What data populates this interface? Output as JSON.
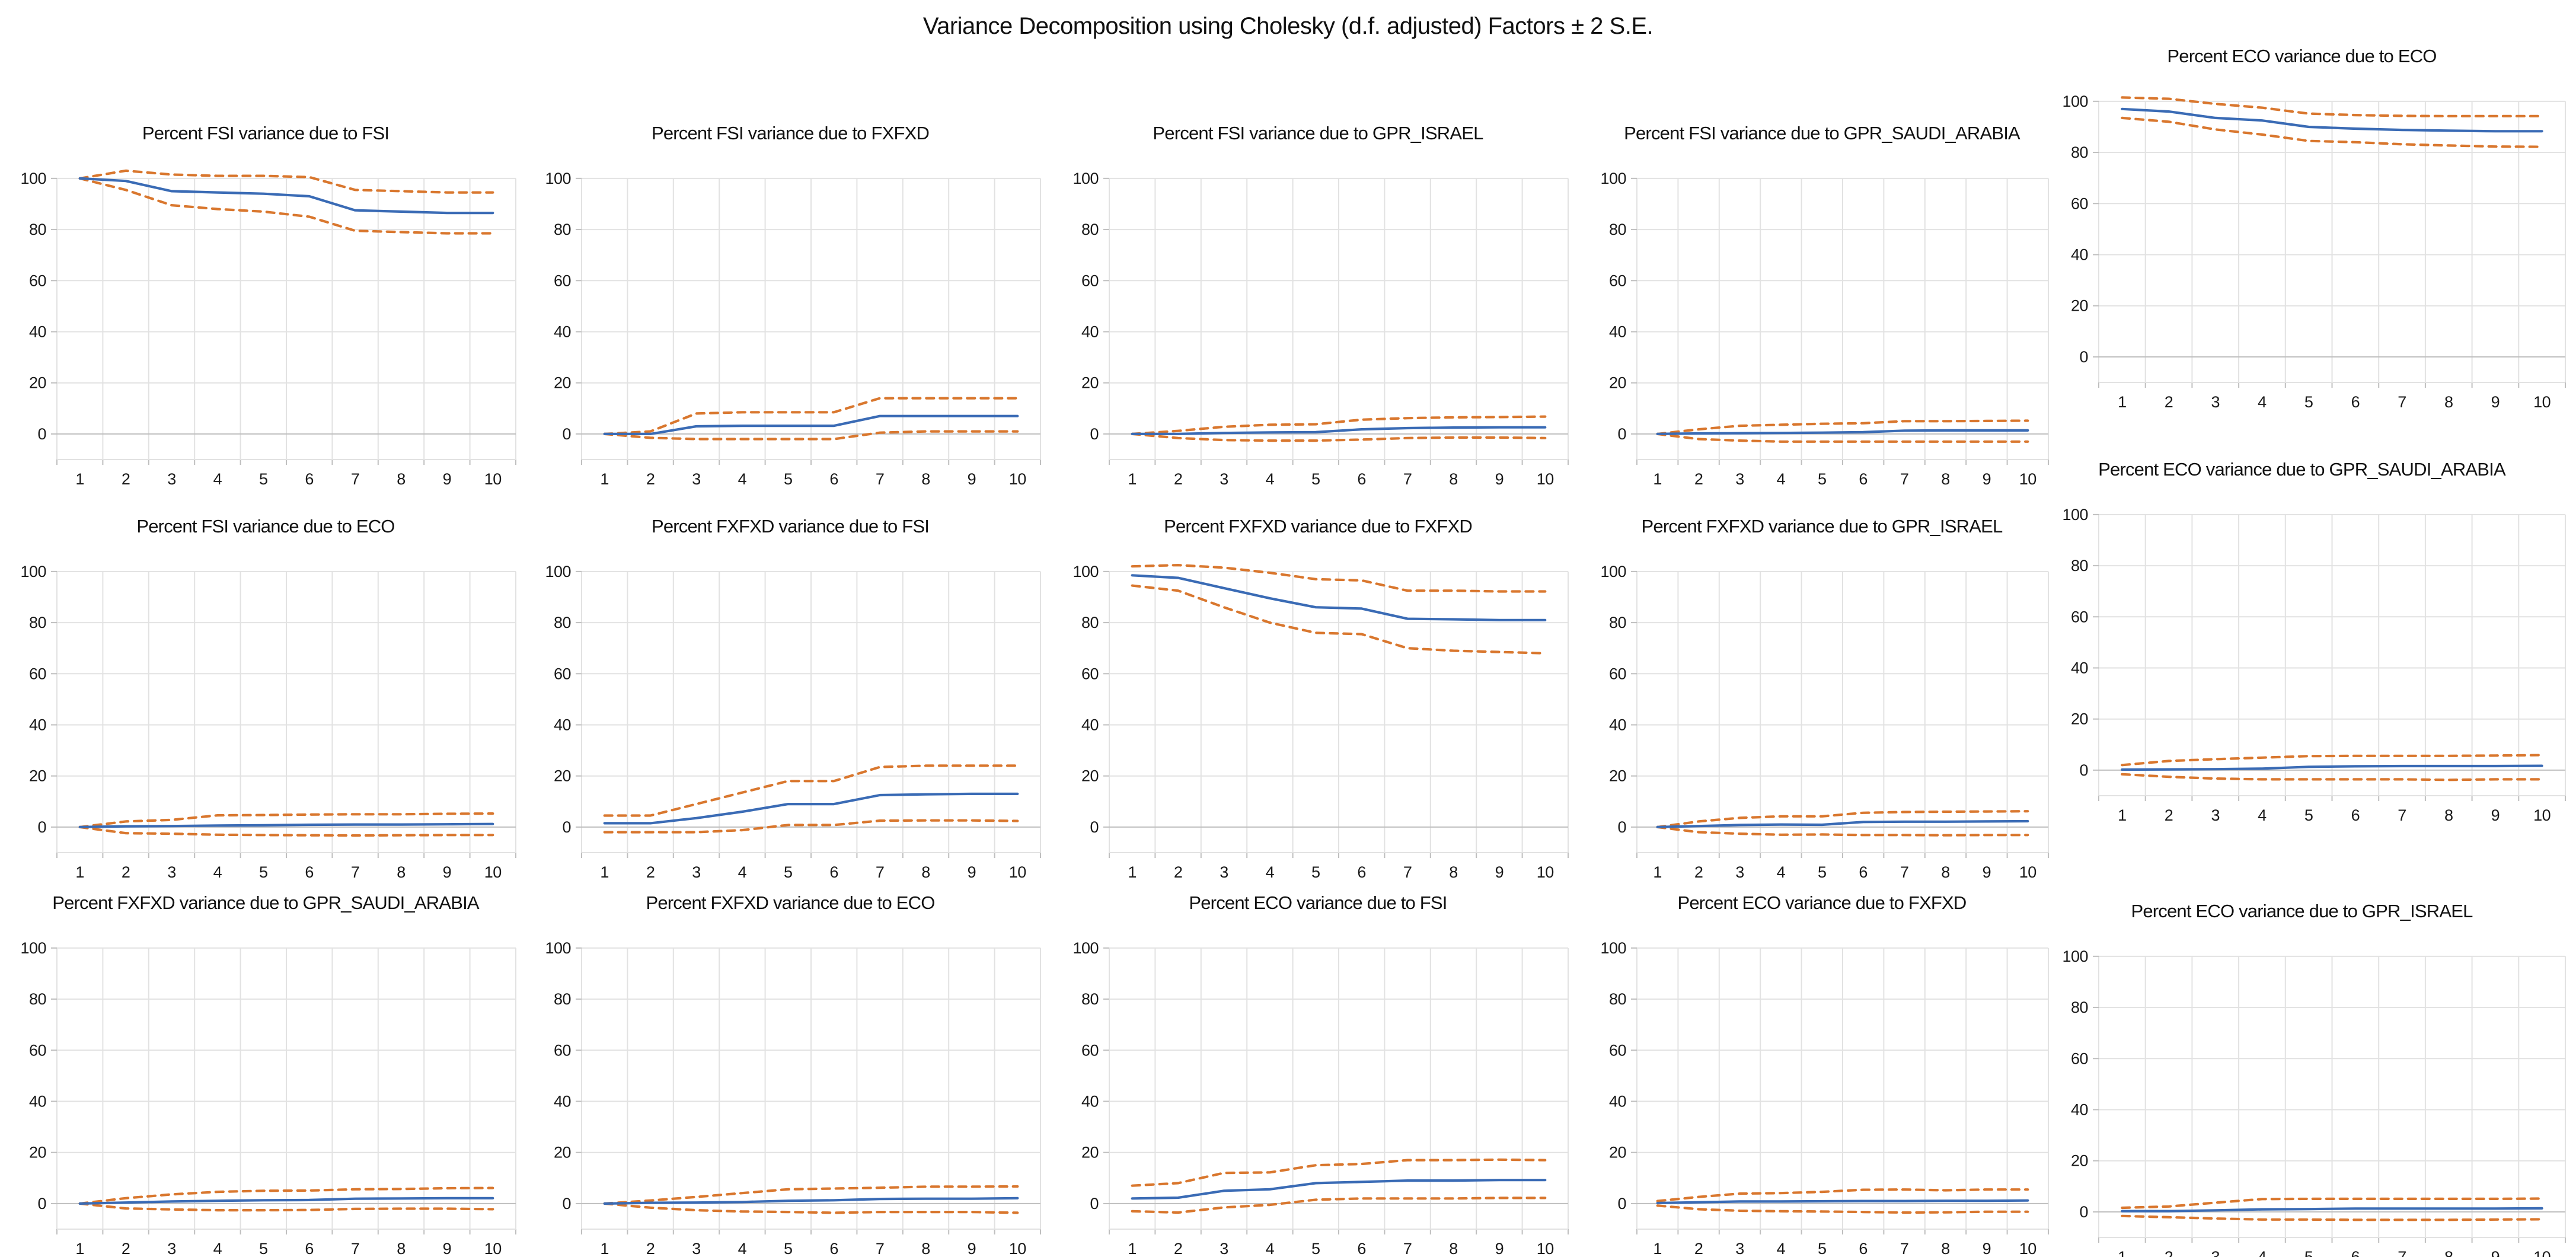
{
  "header": {
    "title": "Variance Decomposition using Cholesky (d.f. adjusted) Factors ± 2 S.E."
  },
  "colors": {
    "mean_line": "#3a6bb5",
    "se_band_line": "#d9772e",
    "grid": "#e2e2e2",
    "axis": "#bfbfbf",
    "text": "#1a1a1a",
    "background": "#ffffff"
  },
  "axes": {
    "x": [
      1,
      2,
      3,
      4,
      5,
      6,
      7,
      8,
      9,
      10
    ],
    "y_ticks": [
      0,
      20,
      40,
      60,
      80,
      100
    ],
    "ylim": [
      -10,
      106
    ],
    "grid": true,
    "legend": "none"
  },
  "chart_data": [
    {
      "type": "line",
      "title": "Percent FSI variance due to FSI",
      "series": [
        {
          "name": "mean",
          "values": [
            100,
            99,
            95,
            94.5,
            94,
            93,
            87.5,
            87,
            86.5,
            86.5
          ]
        },
        {
          "name": "upper_2se",
          "values": [
            100,
            103,
            101.5,
            101,
            101,
            100.5,
            95.5,
            95,
            94.5,
            94.5
          ]
        },
        {
          "name": "lower_2se",
          "values": [
            100,
            95.5,
            89.5,
            88,
            87,
            85,
            79.5,
            79,
            78.5,
            78.5
          ]
        }
      ]
    },
    {
      "type": "line",
      "title": "Percent FSI variance due to FXFXD",
      "series": [
        {
          "name": "mean",
          "values": [
            0,
            0,
            3,
            3.2,
            3.2,
            3.2,
            7,
            7,
            7,
            7
          ]
        },
        {
          "name": "upper_2se",
          "values": [
            0,
            1,
            8,
            8.5,
            8.5,
            8.5,
            14,
            14,
            14,
            14
          ]
        },
        {
          "name": "lower_2se",
          "values": [
            0,
            -1.5,
            -2,
            -2,
            -2,
            -2,
            0.5,
            1,
            1,
            1
          ]
        }
      ]
    },
    {
      "type": "line",
      "title": "Percent FSI variance due to GPR_ISRAEL",
      "series": [
        {
          "name": "mean",
          "values": [
            0,
            0,
            0.4,
            0.6,
            0.7,
            1.8,
            2.3,
            2.5,
            2.6,
            2.6
          ]
        },
        {
          "name": "upper_2se",
          "values": [
            0,
            1.2,
            2.8,
            3.6,
            3.8,
            5.6,
            6.2,
            6.5,
            6.6,
            6.8
          ]
        },
        {
          "name": "lower_2se",
          "values": [
            0,
            -1.6,
            -2.4,
            -2.6,
            -2.6,
            -2.2,
            -1.6,
            -1.4,
            -1.4,
            -1.6
          ]
        }
      ]
    },
    {
      "type": "line",
      "title": "Percent FSI variance due to GPR_SAUDI_ARABIA",
      "series": [
        {
          "name": "mean",
          "values": [
            0,
            0.2,
            0.3,
            0.4,
            0.5,
            0.7,
            1.3,
            1.4,
            1.4,
            1.4
          ]
        },
        {
          "name": "upper_2se",
          "values": [
            0,
            1.8,
            3.2,
            3.6,
            4,
            4.2,
            5,
            5,
            5.1,
            5.2
          ]
        },
        {
          "name": "lower_2se",
          "values": [
            0,
            -2,
            -2.6,
            -3,
            -3,
            -3,
            -3,
            -3,
            -3,
            -3
          ]
        }
      ]
    },
    {
      "type": "line",
      "title": "Percent ECO variance due to ECO",
      "series": [
        {
          "name": "mean",
          "values": [
            97,
            96,
            93.5,
            92.5,
            90,
            89.3,
            88.8,
            88.5,
            88.3,
            88.3
          ]
        },
        {
          "name": "upper_2se",
          "values": [
            101.5,
            101,
            99,
            97.5,
            95.2,
            94.6,
            94.3,
            94.2,
            94.2,
            94.2
          ]
        },
        {
          "name": "lower_2se",
          "values": [
            93.5,
            92,
            89,
            87,
            84.5,
            84,
            83.2,
            82.7,
            82.3,
            82.2
          ]
        }
      ]
    },
    {
      "type": "line",
      "title": "Percent FSI variance due to ECO",
      "series": [
        {
          "name": "mean",
          "values": [
            0,
            0.3,
            0.4,
            0.6,
            0.7,
            0.9,
            1,
            1,
            1.1,
            1.2
          ]
        },
        {
          "name": "upper_2se",
          "values": [
            0,
            2.2,
            2.8,
            4.6,
            4.7,
            4.9,
            5,
            5,
            5.2,
            5.3
          ]
        },
        {
          "name": "lower_2se",
          "values": [
            0,
            -2.4,
            -2.6,
            -3,
            -3.1,
            -3.2,
            -3.3,
            -3.2,
            -3.1,
            -3.1
          ]
        }
      ]
    },
    {
      "type": "line",
      "title": "Percent FXFXD variance due to FSI",
      "series": [
        {
          "name": "mean",
          "values": [
            1.5,
            1.5,
            3.5,
            6,
            9,
            9,
            12.5,
            12.8,
            13,
            13
          ]
        },
        {
          "name": "upper_2se",
          "values": [
            4.5,
            4.5,
            9,
            13.5,
            18,
            18,
            23.5,
            24,
            24,
            24
          ]
        },
        {
          "name": "lower_2se",
          "values": [
            -2,
            -2,
            -2,
            -1.2,
            0.8,
            0.8,
            2.5,
            2.6,
            2.6,
            2.4
          ]
        }
      ]
    },
    {
      "type": "line",
      "title": "Percent FXFXD variance due to FXFXD",
      "series": [
        {
          "name": "mean",
          "values": [
            98.5,
            97.5,
            93.5,
            89.5,
            86,
            85.5,
            81.5,
            81.3,
            81,
            81
          ]
        },
        {
          "name": "upper_2se",
          "values": [
            102,
            102.5,
            101.5,
            99.5,
            97,
            96.5,
            92.5,
            92.5,
            92.2,
            92.2
          ]
        },
        {
          "name": "lower_2se",
          "values": [
            94.5,
            92.5,
            86,
            80,
            76,
            75.5,
            70,
            69,
            68.5,
            68
          ]
        }
      ]
    },
    {
      "type": "line",
      "title": "Percent FXFXD variance due to GPR_ISRAEL",
      "series": [
        {
          "name": "mean",
          "values": [
            0,
            0.4,
            0.8,
            1,
            0.9,
            2,
            2.1,
            2.1,
            2.2,
            2.3
          ]
        },
        {
          "name": "upper_2se",
          "values": [
            0,
            2.2,
            3.6,
            4.2,
            4.2,
            5.6,
            5.9,
            6,
            6.1,
            6.2
          ]
        },
        {
          "name": "lower_2se",
          "values": [
            0,
            -2,
            -2.6,
            -3,
            -2.9,
            -3.1,
            -3.1,
            -3.2,
            -3.1,
            -3.1
          ]
        }
      ]
    },
    {
      "type": "line",
      "title": "Percent ECO variance due to GPR_SAUDI_ARABIA",
      "series": [
        {
          "name": "mean",
          "values": [
            0.2,
            0.3,
            0.4,
            0.6,
            1.3,
            1.5,
            1.6,
            1.6,
            1.6,
            1.7
          ]
        },
        {
          "name": "upper_2se",
          "values": [
            2,
            3.6,
            4.3,
            4.9,
            5.5,
            5.6,
            5.6,
            5.6,
            5.7,
            5.9
          ]
        },
        {
          "name": "lower_2se",
          "values": [
            -1.6,
            -2.6,
            -3.3,
            -3.6,
            -3.6,
            -3.6,
            -3.6,
            -3.8,
            -3.6,
            -3.6
          ]
        }
      ]
    },
    {
      "type": "line",
      "title": "Percent FXFXD variance due to GPR_SAUDI_ARABIA",
      "series": [
        {
          "name": "mean",
          "values": [
            0,
            0.4,
            0.8,
            1.1,
            1.3,
            1.4,
            1.9,
            2,
            2.1,
            2.1
          ]
        },
        {
          "name": "upper_2se",
          "values": [
            0,
            2.1,
            3.6,
            4.6,
            5,
            5.1,
            5.6,
            5.7,
            6,
            6.1
          ]
        },
        {
          "name": "lower_2se",
          "values": [
            0,
            -1.9,
            -2.3,
            -2.6,
            -2.6,
            -2.5,
            -2.1,
            -2,
            -2,
            -2.2
          ]
        }
      ]
    },
    {
      "type": "line",
      "title": "Percent FXFXD variance due to ECO",
      "series": [
        {
          "name": "mean",
          "values": [
            0,
            0.3,
            0.4,
            0.6,
            1.1,
            1.3,
            1.8,
            1.9,
            1.9,
            2.1
          ]
        },
        {
          "name": "upper_2se",
          "values": [
            0,
            1.2,
            2.6,
            4.1,
            5.6,
            5.9,
            6.2,
            6.6,
            6.6,
            6.7
          ]
        },
        {
          "name": "lower_2se",
          "values": [
            0,
            -1.6,
            -2.6,
            -3.1,
            -3.3,
            -3.6,
            -3.3,
            -3.3,
            -3.3,
            -3.6
          ]
        }
      ]
    },
    {
      "type": "line",
      "title": "Percent ECO variance due to FSI",
      "series": [
        {
          "name": "mean",
          "values": [
            2,
            2.3,
            5,
            5.6,
            8,
            8.5,
            9,
            9,
            9.2,
            9.2
          ]
        },
        {
          "name": "upper_2se",
          "values": [
            7,
            8,
            12,
            12.2,
            15,
            15.5,
            17,
            17,
            17.2,
            17
          ]
        },
        {
          "name": "lower_2se",
          "values": [
            -3,
            -3.5,
            -1.5,
            -0.5,
            1.5,
            2,
            2,
            2,
            2.2,
            2.2
          ]
        }
      ]
    },
    {
      "type": "line",
      "title": "Percent ECO variance due to FXFXD",
      "series": [
        {
          "name": "mean",
          "values": [
            0.2,
            0.5,
            0.8,
            0.8,
            0.9,
            1,
            1,
            1.1,
            1.1,
            1.2
          ]
        },
        {
          "name": "upper_2se",
          "values": [
            1,
            2.6,
            3.9,
            4.1,
            4.6,
            5.4,
            5.5,
            5.2,
            5.5,
            5.5
          ]
        },
        {
          "name": "lower_2se",
          "values": [
            -0.8,
            -2.2,
            -2.8,
            -3,
            -3.1,
            -3.3,
            -3.5,
            -3.4,
            -3.2,
            -3.2
          ]
        }
      ]
    },
    {
      "type": "line",
      "title": "Percent ECO variance due to GPR_ISRAEL",
      "series": [
        {
          "name": "mean",
          "values": [
            0.3,
            0.3,
            0.6,
            1,
            1.1,
            1.3,
            1.3,
            1.3,
            1.3,
            1.4
          ]
        },
        {
          "name": "upper_2se",
          "values": [
            1.6,
            2.1,
            3.6,
            5,
            5.1,
            5.1,
            5.1,
            5.1,
            5.1,
            5.2
          ]
        },
        {
          "name": "lower_2se",
          "values": [
            -1.6,
            -2.1,
            -2.6,
            -3,
            -3,
            -3.1,
            -3.1,
            -3.1,
            -3,
            -2.9
          ]
        }
      ]
    }
  ]
}
